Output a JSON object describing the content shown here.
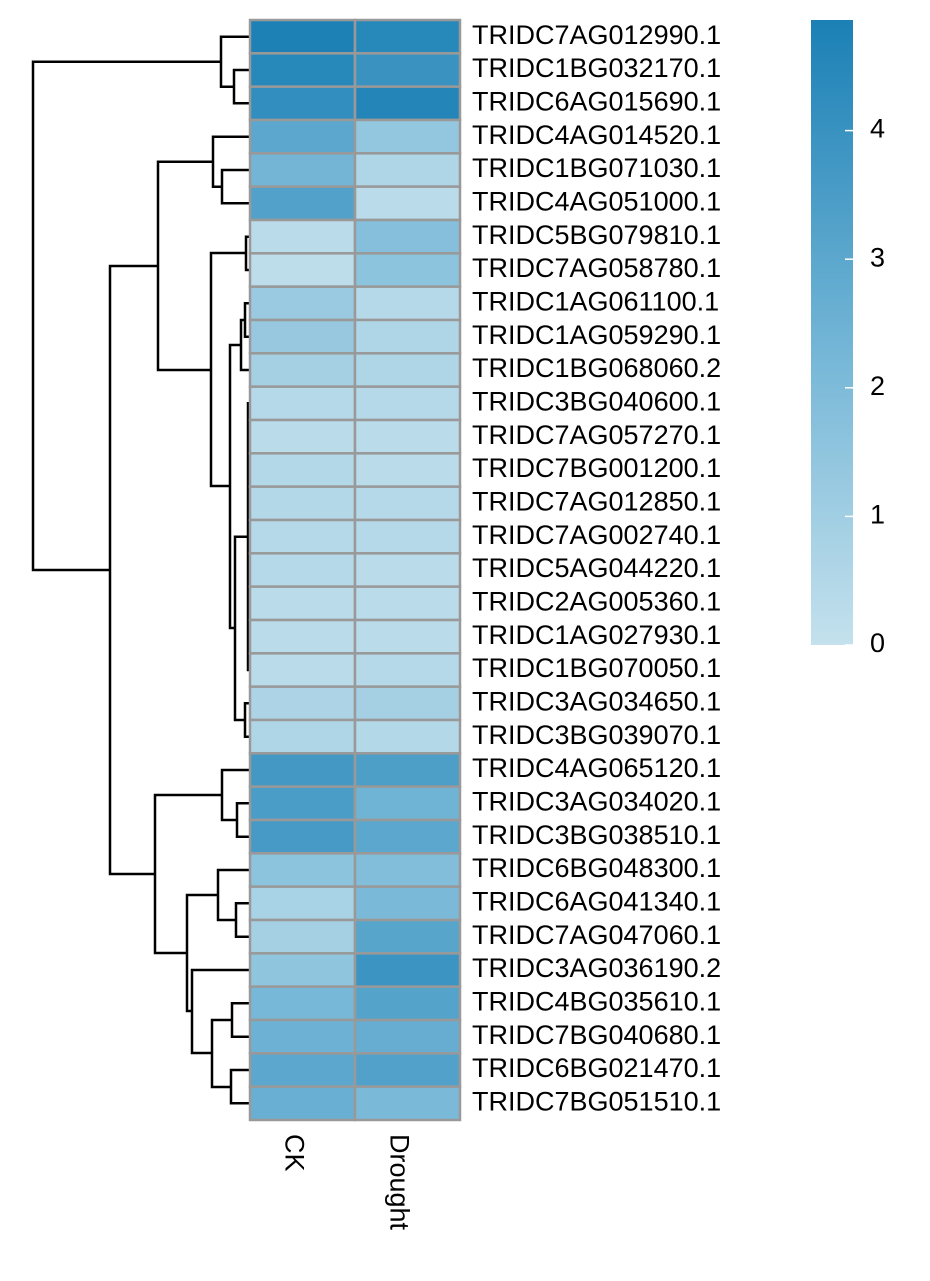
{
  "chart_data": {
    "type": "heatmap",
    "x": [
      "CK",
      "Drought"
    ],
    "y": [
      "TRIDC7AG012990.1",
      "TRIDC1BG032170.1",
      "TRIDC6AG015690.1",
      "TRIDC4AG014520.1",
      "TRIDC1BG071030.1",
      "TRIDC4AG051000.1",
      "TRIDC5BG079810.1",
      "TRIDC7AG058780.1",
      "TRIDC1AG061100.1",
      "TRIDC1AG059290.1",
      "TRIDC1BG068060.2",
      "TRIDC3BG040600.1",
      "TRIDC7AG057270.1",
      "TRIDC7BG001200.1",
      "TRIDC7AG012850.1",
      "TRIDC7AG002740.1",
      "TRIDC5AG044220.1",
      "TRIDC2AG005360.1",
      "TRIDC1AG027930.1",
      "TRIDC1BG070050.1",
      "TRIDC3AG034650.1",
      "TRIDC3BG039070.1",
      "TRIDC4AG065120.1",
      "TRIDC3AG034020.1",
      "TRIDC3BG038510.1",
      "TRIDC6BG048300.1",
      "TRIDC6AG041340.1",
      "TRIDC7AG047060.1",
      "TRIDC3AG036190.2",
      "TRIDC4BG035610.1",
      "TRIDC7BG040680.1",
      "TRIDC6BG021470.1",
      "TRIDC7BG051510.1"
    ],
    "values": [
      [
        4.8,
        4.5
      ],
      [
        4.5,
        4.0
      ],
      [
        4.2,
        4.6
      ],
      [
        3.0,
        1.4
      ],
      [
        2.3,
        0.6
      ],
      [
        3.3,
        0.3
      ],
      [
        0.3,
        1.8
      ],
      [
        0.2,
        1.6
      ],
      [
        1.2,
        0.4
      ],
      [
        1.3,
        0.6
      ],
      [
        0.9,
        0.6
      ],
      [
        0.4,
        0.4
      ],
      [
        0.3,
        0.3
      ],
      [
        0.5,
        0.3
      ],
      [
        0.5,
        0.4
      ],
      [
        0.4,
        0.4
      ],
      [
        0.4,
        0.3
      ],
      [
        0.3,
        0.3
      ],
      [
        0.3,
        0.3
      ],
      [
        0.3,
        0.4
      ],
      [
        0.7,
        0.9
      ],
      [
        0.6,
        0.5
      ],
      [
        3.7,
        3.4
      ],
      [
        3.5,
        2.4
      ],
      [
        3.6,
        3.0
      ],
      [
        1.6,
        1.9
      ],
      [
        0.8,
        2.1
      ],
      [
        0.9,
        3.1
      ],
      [
        1.5,
        3.9
      ],
      [
        2.2,
        3.2
      ],
      [
        2.5,
        2.7
      ],
      [
        3.0,
        3.3
      ],
      [
        2.6,
        2.1
      ]
    ],
    "colorscale": [
      "#c4e1ed",
      "#6fb3d5",
      "#1b80b5"
    ],
    "zlim": [
      0,
      4.86
    ],
    "zticks": [
      0,
      1,
      2,
      3,
      4
    ]
  }
}
